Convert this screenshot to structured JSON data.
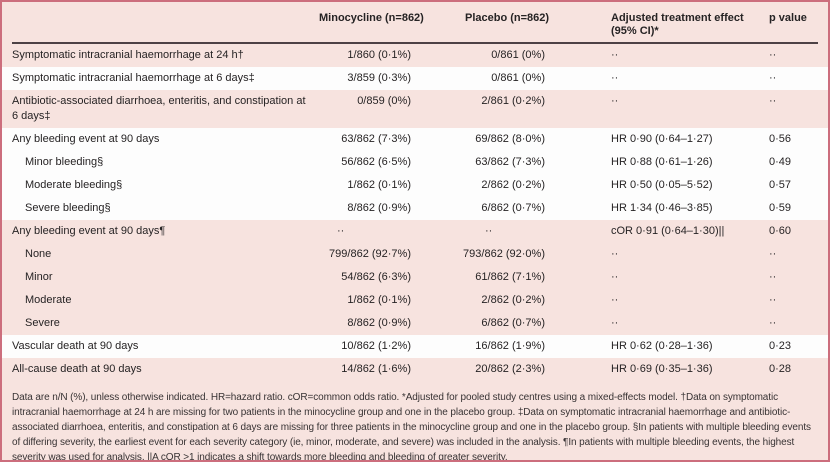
{
  "table": {
    "columns": [
      "",
      "Minocycline (n=862)",
      "Placebo (n=862)",
      "Adjusted treatment effect (95% CI)*",
      "p value"
    ],
    "rows": [
      {
        "label": "Symptomatic intracranial haemorrhage at 24 h†",
        "indent": false,
        "shade": "pink",
        "minocycline": "1/860 (0·1%)",
        "placebo": "0/861 (0%)",
        "effect": "··",
        "p_value": "··"
      },
      {
        "label": "Symptomatic intracranial haemorrhage at 6 days‡",
        "indent": false,
        "shade": "white",
        "minocycline": "3/859 (0·3%)",
        "placebo": "0/861 (0%)",
        "effect": "··",
        "p_value": "··"
      },
      {
        "label": "Antibiotic-associated diarrhoea, enteritis, and constipation at 6 days‡",
        "indent": false,
        "shade": "pink",
        "minocycline": "0/859 (0%)",
        "placebo": "2/861 (0·2%)",
        "effect": "··",
        "p_value": "··"
      },
      {
        "label": "Any bleeding event at 90 days",
        "indent": false,
        "shade": "white",
        "minocycline": "63/862 (7·3%)",
        "placebo": "69/862 (8·0%)",
        "effect": "HR 0·90 (0·64–1·27)",
        "p_value": "0·56"
      },
      {
        "label": "Minor bleeding§",
        "indent": true,
        "shade": "white",
        "minocycline": "56/862 (6·5%)",
        "placebo": "63/862 (7·3%)",
        "effect": "HR 0·88 (0·61–1·26)",
        "p_value": "0·49"
      },
      {
        "label": "Moderate bleeding§",
        "indent": true,
        "shade": "white",
        "minocycline": "1/862 (0·1%)",
        "placebo": "2/862 (0·2%)",
        "effect": "HR 0·50 (0·05–5·52)",
        "p_value": "0·57"
      },
      {
        "label": "Severe bleeding§",
        "indent": true,
        "shade": "white",
        "minocycline": "8/862 (0·9%)",
        "placebo": "6/862 (0·7%)",
        "effect": "HR 1·34 (0·46–3·85)",
        "p_value": "0·59"
      },
      {
        "label": "Any bleeding event at 90 days¶",
        "indent": false,
        "shade": "pink",
        "minocycline": "··",
        "placebo": "··",
        "effect": "cOR 0·91 (0·64–1·30)||",
        "p_value": "0·60"
      },
      {
        "label": "None",
        "indent": true,
        "shade": "pink",
        "minocycline": "799/862 (92·7%)",
        "placebo": "793/862 (92·0%)",
        "effect": "··",
        "p_value": "··"
      },
      {
        "label": "Minor",
        "indent": true,
        "shade": "pink",
        "minocycline": "54/862 (6·3%)",
        "placebo": "61/862 (7·1%)",
        "effect": "··",
        "p_value": "··"
      },
      {
        "label": "Moderate",
        "indent": true,
        "shade": "pink",
        "minocycline": "1/862 (0·1%)",
        "placebo": "2/862 (0·2%)",
        "effect": "··",
        "p_value": "··"
      },
      {
        "label": "Severe",
        "indent": true,
        "shade": "pink",
        "minocycline": "8/862 (0·9%)",
        "placebo": "6/862 (0·7%)",
        "effect": "··",
        "p_value": "··"
      },
      {
        "label": "Vascular death at 90 days",
        "indent": false,
        "shade": "white",
        "minocycline": "10/862 (1·2%)",
        "placebo": "16/862 (1·9%)",
        "effect": "HR 0·62 (0·28–1·36)",
        "p_value": "0·23"
      },
      {
        "label": "All-cause death at 90 days",
        "indent": false,
        "shade": "pink",
        "minocycline": "14/862 (1·6%)",
        "placebo": "20/862 (2·3%)",
        "effect": "HR 0·69 (0·35–1·36)",
        "p_value": "0·28"
      }
    ],
    "footnote": "Data are n/N (%), unless otherwise indicated. HR=hazard ratio. cOR=common odds ratio. *Adjusted for pooled study centres using a mixed-effects model. †Data on symptomatic intracranial haemorrhage at 24 h are missing for two patients in the minocycline group and one in the placebo group. ‡Data on symptomatic intracranial haemorrhage and antibiotic-associated diarrhoea, enteritis, and constipation at 6 days are missing for three patients in the minocycline group and one in the placebo group. §In patients with multiple bleeding events of differing severity, the earliest event for each severity category (ie, minor, moderate, and severe) was included in the analysis. ¶In patients with multiple bleeding events, the highest severity was used for analysis. ||A cOR >1 indicates a shift towards more bleeding and bleeding of greater severity.",
    "colors": {
      "border": "#cc6e7d",
      "row_pink": "#f7e3df",
      "row_white": "#fdfdfd",
      "rule": "#4d4145",
      "text": "#262324"
    }
  }
}
